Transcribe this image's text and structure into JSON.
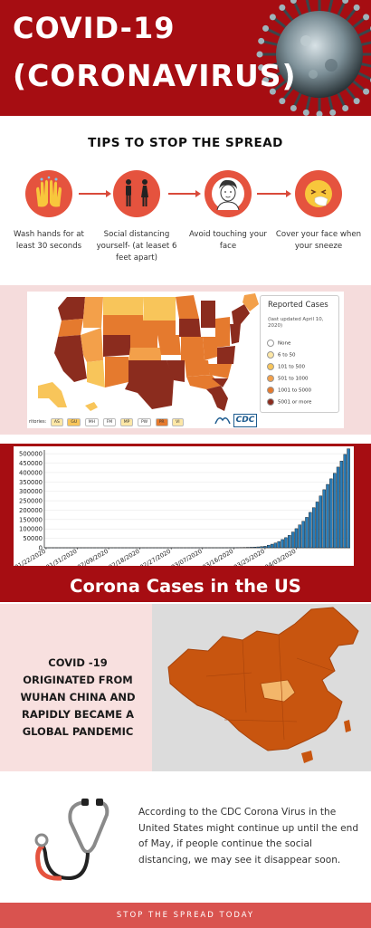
{
  "header": {
    "title_line1": "COVID-19",
    "title_line2": "(CORONAVIRUS)"
  },
  "tips": {
    "title": "TIPS TO STOP THE SPREAD",
    "items": [
      {
        "label": "Wash hands for at least 30 seconds",
        "icon": "hands-icon"
      },
      {
        "label": "Social distancing yourself- (at leaset 6 feet apart)",
        "icon": "people-icon"
      },
      {
        "label": "Avoid touching your face",
        "icon": "face-icon"
      },
      {
        "label": "Cover your face when your sneeze",
        "icon": "sneeze-icon"
      }
    ]
  },
  "map": {
    "legend_title": "Reported Cases",
    "legend_updated": "(last updated April 10, 2020)",
    "legend_items": [
      {
        "label": "None",
        "color": "#ffffff"
      },
      {
        "label": "6 to 50",
        "color": "#fde7a6"
      },
      {
        "label": "101 to 500",
        "color": "#f8c55a"
      },
      {
        "label": "501 to 1000",
        "color": "#f3a04a"
      },
      {
        "label": "1001 to 5000",
        "color": "#e57a2e"
      },
      {
        "label": "5001 or more",
        "color": "#8b2c1e"
      }
    ],
    "territories_label": "ritories:",
    "territories": [
      "AS",
      "GU",
      "MH",
      "FM",
      "MP",
      "PW",
      "PR",
      "VI"
    ],
    "logo_text": "CDC"
  },
  "chart_data": {
    "type": "bar",
    "title": "Corona Cases in the US",
    "xlabel": "",
    "ylabel": "",
    "ylim": [
      0,
      520000
    ],
    "yticks": [
      0,
      50000,
      100000,
      150000,
      200000,
      250000,
      300000,
      350000,
      400000,
      450000,
      500000
    ],
    "xtick_labels": [
      "01/22/2020",
      "01/31/2020",
      "02/09/2020",
      "02/18/2020",
      "02/27/2020",
      "03/07/2020",
      "03/16/2020",
      "03/25/2020",
      "04/03/2020"
    ],
    "values": [
      1,
      1,
      2,
      2,
      5,
      5,
      5,
      5,
      5,
      6,
      7,
      8,
      11,
      11,
      11,
      11,
      11,
      11,
      11,
      11,
      12,
      12,
      13,
      13,
      13,
      13,
      13,
      13,
      13,
      13,
      15,
      15,
      15,
      15,
      15,
      15,
      15,
      15,
      35,
      35,
      35,
      53,
      57,
      60,
      60,
      62,
      64,
      96,
      118,
      149,
      217,
      262,
      402,
      518,
      583,
      959,
      1281,
      1663,
      2179,
      2727,
      3499,
      4632,
      6421,
      7786,
      13680,
      19101,
      25493,
      33276,
      43847,
      53740,
      65778,
      83836,
      101657,
      121478,
      140886,
      161807,
      188172,
      213372,
      243453,
      275586,
      308850,
      337072,
      366667,
      396223,
      429052,
      461437,
      496535,
      526396
    ]
  },
  "china": {
    "text": "COVID -19 ORIGINATED FROM WUHAN CHINA AND RAPIDLY BECAME A GLOBAL PANDEMIC"
  },
  "cdc": {
    "text": "According to the CDC Corona Virus in the United States might continue up until the end of May, if people continue the social distancing, we may see it disappear soon."
  },
  "footer": {
    "text": "STOP THE SPREAD TODAY"
  },
  "colors": {
    "brand_red": "#a60d12",
    "tip_circle": "#e5533e",
    "footer": "#d9534f",
    "china_fill": "#c8550f",
    "bar_fill": "#2a7db8"
  }
}
